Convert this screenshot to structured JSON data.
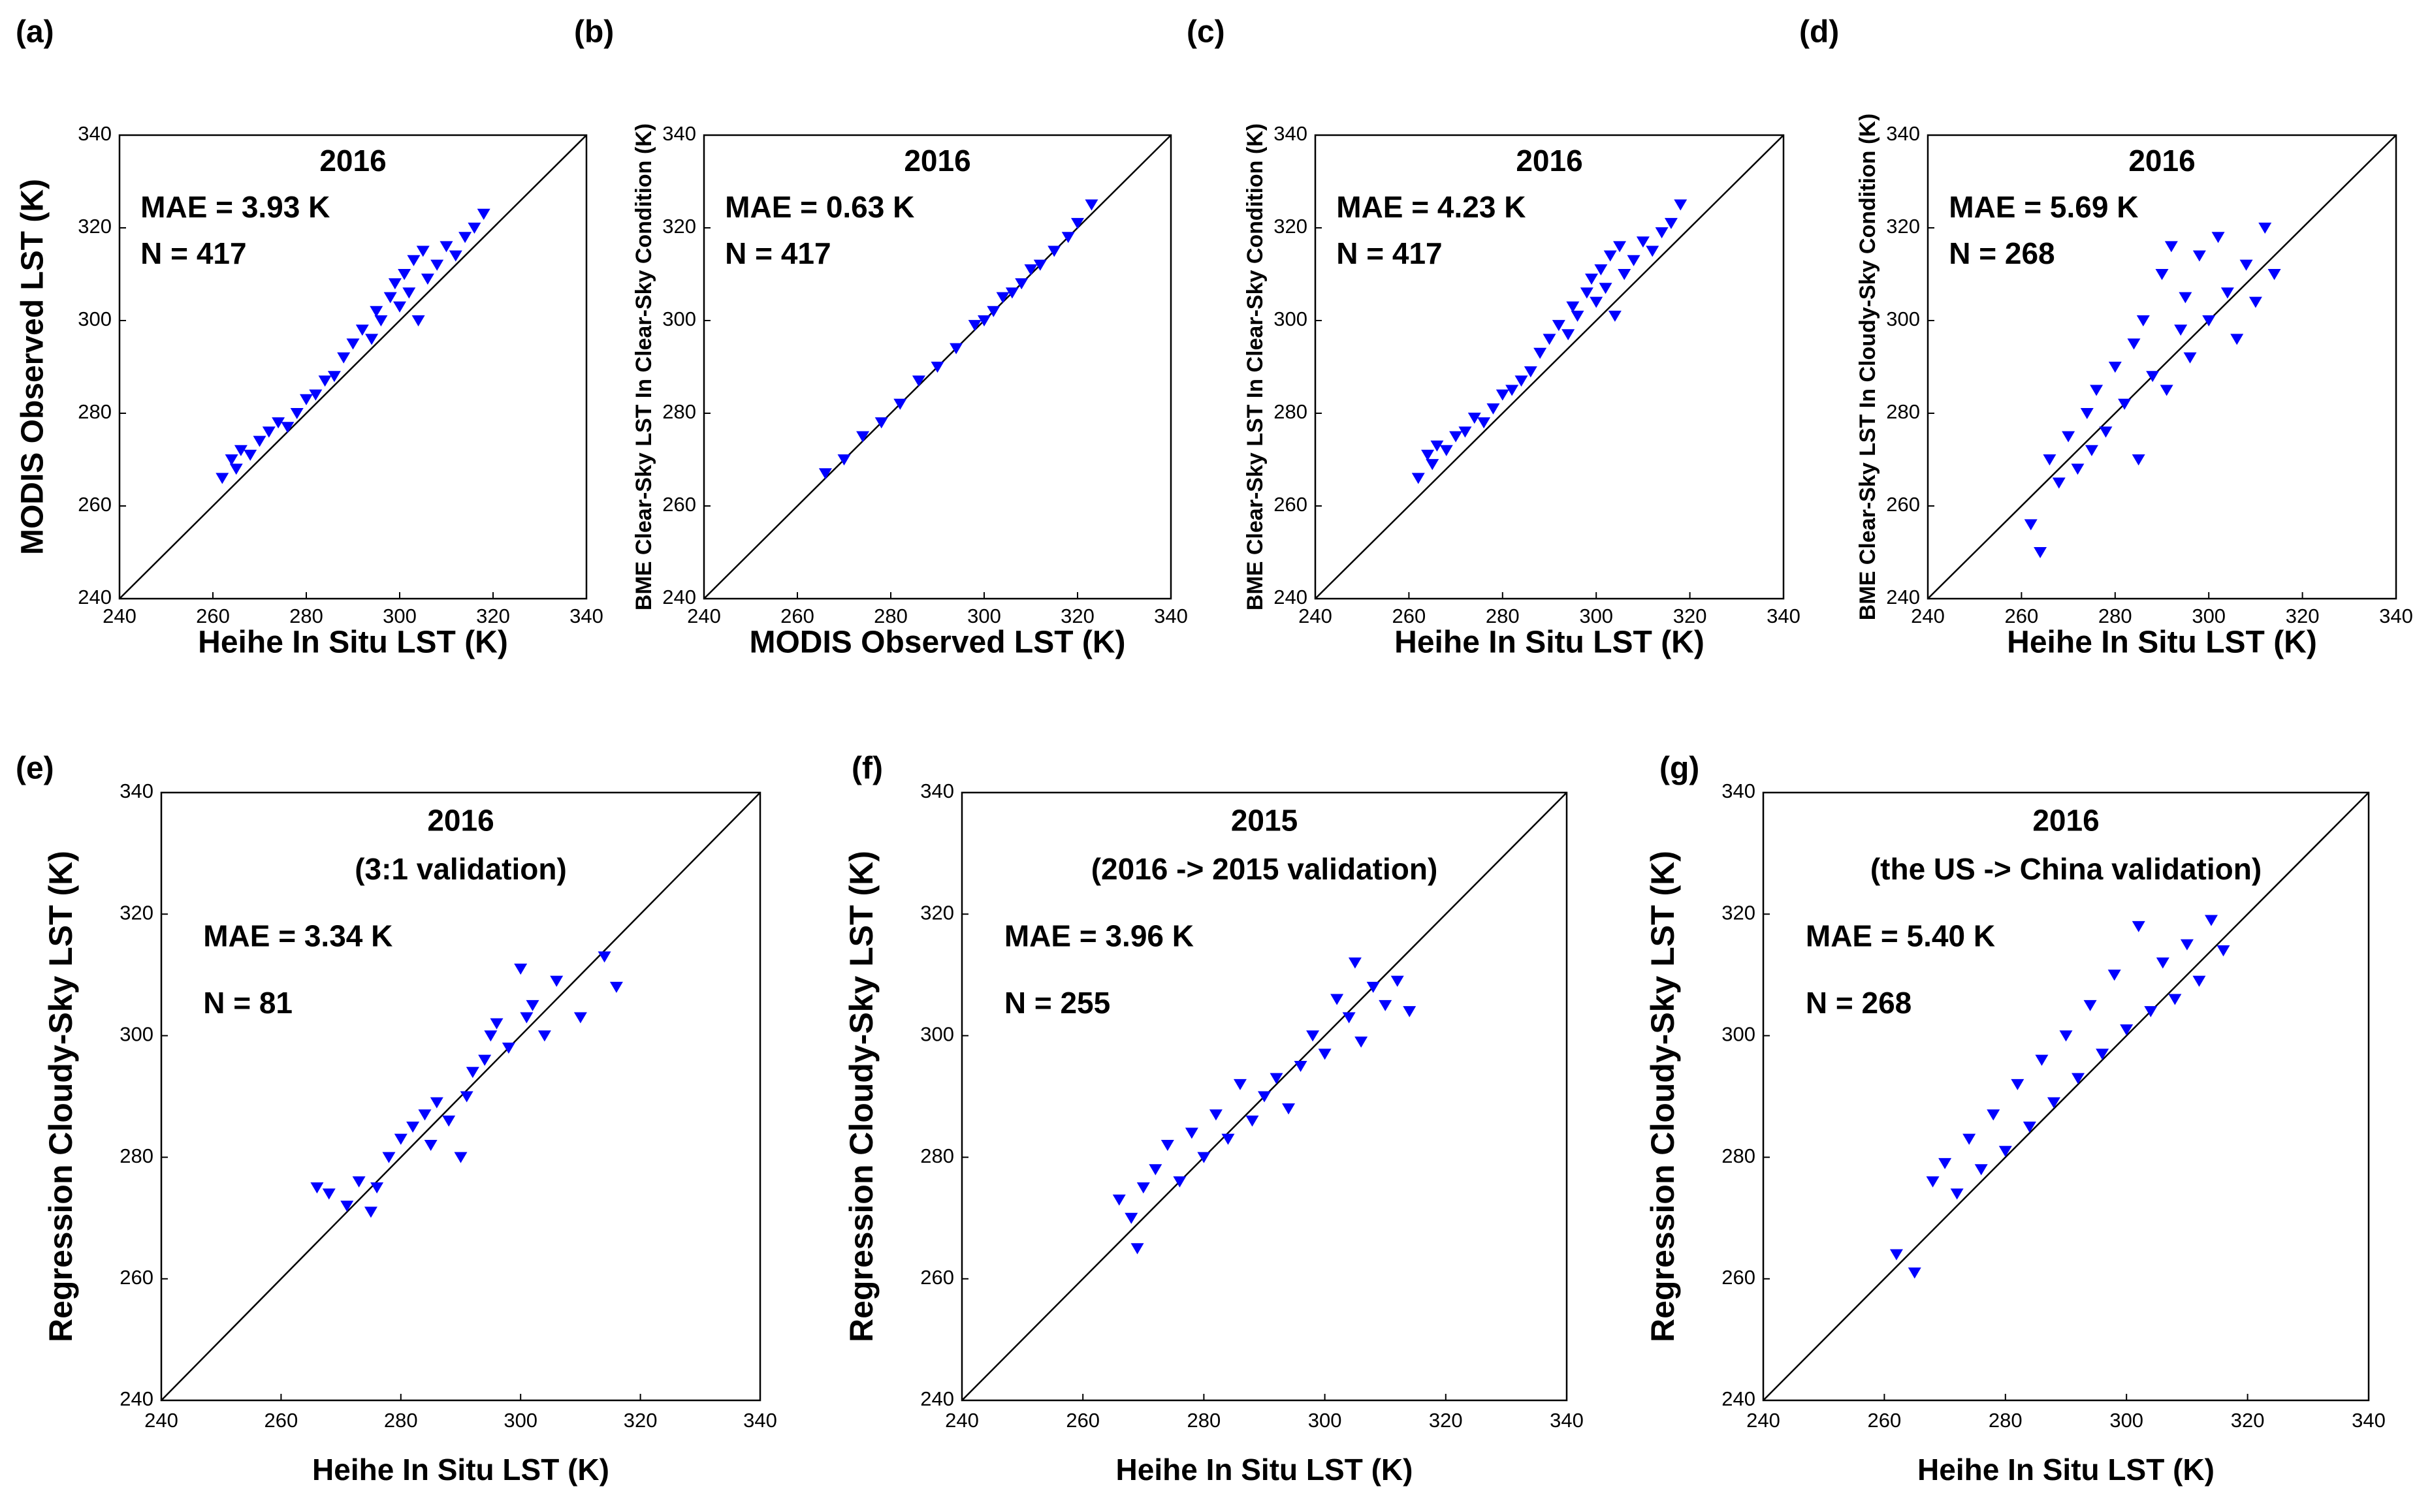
{
  "chart_data": [
    {
      "type": "scatter",
      "panel": "(a)",
      "title": "2016",
      "annotations": [
        "MAE = 3.93 K",
        "N = 417"
      ],
      "xlabel": "Heihe In Situ LST (K)",
      "ylabel": "MODIS Observed LST (K)",
      "color": "#0000ff",
      "xlim": [
        240,
        340
      ],
      "ylim": [
        240,
        340
      ],
      "xticks": [
        240,
        260,
        280,
        300,
        320,
        340
      ],
      "yticks": [
        240,
        260,
        280,
        300,
        320,
        340
      ],
      "x": [
        262,
        264,
        265,
        266,
        268,
        270,
        272,
        274,
        276,
        278,
        280,
        282,
        284,
        286,
        288,
        290,
        292,
        294,
        295,
        296,
        298,
        299,
        300,
        301,
        302,
        303,
        304,
        305,
        306,
        308,
        310,
        312,
        314,
        316,
        318
      ],
      "values": [
        266,
        270,
        268,
        272,
        271,
        274,
        276,
        278,
        277,
        280,
        283,
        284,
        287,
        288,
        292,
        295,
        298,
        296,
        302,
        300,
        305,
        308,
        303,
        310,
        306,
        313,
        300,
        315,
        309,
        312,
        316,
        314,
        318,
        320,
        323
      ]
    },
    {
      "type": "scatter",
      "panel": "(b)",
      "title": "2016",
      "annotations": [
        "MAE = 0.63 K",
        "N = 417"
      ],
      "xlabel": "MODIS Observed  LST (K)",
      "ylabel": "BME Clear-Sky LST In Clear-Sky Condition (K)",
      "color": "#0000ff",
      "xlim": [
        240,
        340
      ],
      "ylim": [
        240,
        340
      ],
      "xticks": [
        240,
        260,
        280,
        300,
        320,
        340
      ],
      "yticks": [
        240,
        260,
        280,
        300,
        320,
        340
      ],
      "x": [
        266,
        270,
        274,
        278,
        282,
        286,
        290,
        294,
        298,
        300,
        302,
        304,
        306,
        308,
        310,
        312,
        315,
        318,
        320,
        323
      ],
      "values": [
        267,
        270,
        275,
        278,
        282,
        287,
        290,
        294,
        299,
        300,
        302,
        305,
        306,
        308,
        311,
        312,
        315,
        318,
        321,
        325
      ]
    },
    {
      "type": "scatter",
      "panel": "(c)",
      "title": "2016",
      "annotations": [
        "MAE = 4.23 K",
        "N = 417"
      ],
      "xlabel": "Heihe In Situ LST (K)",
      "ylabel": "BME Clear-Sky LST In Clear-Sky Condition (K)",
      "color": "#0000ff",
      "xlim": [
        240,
        340
      ],
      "ylim": [
        240,
        340
      ],
      "xticks": [
        240,
        260,
        280,
        300,
        320,
        340
      ],
      "yticks": [
        240,
        260,
        280,
        300,
        320,
        340
      ],
      "x": [
        262,
        264,
        265,
        266,
        268,
        270,
        272,
        274,
        276,
        278,
        280,
        282,
        284,
        286,
        288,
        290,
        292,
        294,
        295,
        296,
        298,
        299,
        300,
        301,
        302,
        303,
        304,
        305,
        306,
        308,
        310,
        312,
        314,
        316,
        318
      ],
      "values": [
        266,
        271,
        269,
        273,
        272,
        275,
        276,
        279,
        278,
        281,
        284,
        285,
        287,
        289,
        293,
        296,
        299,
        297,
        303,
        301,
        306,
        309,
        304,
        311,
        307,
        314,
        301,
        316,
        310,
        313,
        317,
        315,
        319,
        321,
        325
      ]
    },
    {
      "type": "scatter",
      "panel": "(d)",
      "title": "2016",
      "annotations": [
        "MAE = 5.69 K",
        "N = 268"
      ],
      "xlabel": "Heihe In Situ LST (K)",
      "ylabel": "BME Clear-Sky LST In Cloudy-Sky Condition (K)",
      "color": "#0000ff",
      "xlim": [
        240,
        340
      ],
      "ylim": [
        240,
        340
      ],
      "xticks": [
        240,
        260,
        280,
        300,
        320,
        340
      ],
      "yticks": [
        240,
        260,
        280,
        300,
        320,
        340
      ],
      "x": [
        262,
        264,
        266,
        268,
        270,
        272,
        274,
        275,
        276,
        278,
        280,
        282,
        284,
        285,
        286,
        288,
        290,
        291,
        292,
        294,
        295,
        296,
        298,
        300,
        302,
        304,
        306,
        308,
        310,
        312,
        314
      ],
      "values": [
        256,
        250,
        270,
        265,
        275,
        268,
        280,
        272,
        285,
        276,
        290,
        282,
        295,
        270,
        300,
        288,
        310,
        285,
        316,
        298,
        305,
        292,
        314,
        300,
        318,
        306,
        296,
        312,
        304,
        320,
        310
      ]
    },
    {
      "type": "scatter",
      "panel": "(e)",
      "title": "2016",
      "subtitle": "(3:1 validation)",
      "annotations": [
        "MAE = 3.34 K",
        "N = 81"
      ],
      "xlabel": "Heihe In Situ LST (K)",
      "ylabel": "Regression Cloudy-Sky LST (K)",
      "color": "#0000ff",
      "xlim": [
        240,
        340
      ],
      "ylim": [
        240,
        340
      ],
      "xticks": [
        240,
        260,
        280,
        300,
        320,
        340
      ],
      "yticks": [
        240,
        260,
        280,
        300,
        320,
        340
      ],
      "x": [
        266,
        268,
        271,
        273,
        275,
        276,
        278,
        280,
        282,
        284,
        285,
        286,
        288,
        290,
        291,
        292,
        294,
        295,
        296,
        298,
        300,
        301,
        302,
        304,
        306,
        310,
        314,
        316
      ],
      "values": [
        275,
        274,
        272,
        276,
        271,
        275,
        280,
        283,
        285,
        287,
        282,
        289,
        286,
        280,
        290,
        294,
        296,
        300,
        302,
        298,
        311,
        303,
        305,
        300,
        309,
        303,
        313,
        308
      ]
    },
    {
      "type": "scatter",
      "panel": "(f)",
      "title": "2015",
      "subtitle": "(2016 -> 2015 validation)",
      "annotations": [
        "MAE = 3.96 K",
        "N = 255"
      ],
      "xlabel": "Heihe In Situ LST (K)",
      "ylabel": "Regression Cloudy-Sky LST (K)",
      "color": "#0000ff",
      "xlim": [
        240,
        340
      ],
      "ylim": [
        240,
        340
      ],
      "xticks": [
        240,
        260,
        280,
        300,
        320,
        340
      ],
      "yticks": [
        240,
        260,
        280,
        300,
        320,
        340
      ],
      "x": [
        266,
        268,
        269,
        270,
        272,
        274,
        276,
        278,
        280,
        282,
        284,
        286,
        288,
        290,
        292,
        294,
        296,
        298,
        300,
        302,
        304,
        305,
        306,
        308,
        310,
        312,
        314
      ],
      "values": [
        273,
        270,
        265,
        275,
        278,
        282,
        276,
        284,
        280,
        287,
        283,
        292,
        286,
        290,
        293,
        288,
        295,
        300,
        297,
        306,
        303,
        312,
        299,
        308,
        305,
        309,
        304
      ]
    },
    {
      "type": "scatter",
      "panel": "(g)",
      "title": "2016",
      "subtitle": "(the US -> China validation)",
      "annotations": [
        "MAE = 5.40 K",
        "N = 268"
      ],
      "xlabel": "Heihe In Situ LST (K)",
      "ylabel": "Regression Cloudy-Sky LST (K)",
      "color": "#0000ff",
      "xlim": [
        240,
        340
      ],
      "ylim": [
        240,
        340
      ],
      "xticks": [
        240,
        260,
        280,
        300,
        320,
        340
      ],
      "yticks": [
        240,
        260,
        280,
        300,
        320,
        340
      ],
      "x": [
        262,
        265,
        268,
        270,
        272,
        274,
        276,
        278,
        280,
        282,
        284,
        286,
        288,
        290,
        292,
        294,
        296,
        298,
        300,
        302,
        304,
        306,
        308,
        310,
        312,
        314,
        316
      ],
      "values": [
        264,
        261,
        276,
        279,
        274,
        283,
        278,
        287,
        281,
        292,
        285,
        296,
        289,
        300,
        293,
        305,
        297,
        310,
        301,
        318,
        304,
        312,
        306,
        315,
        309,
        319,
        314
      ]
    }
  ]
}
